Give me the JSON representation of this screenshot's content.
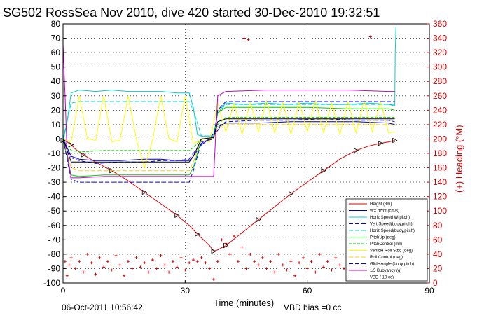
{
  "chart_data": {
    "type": "line",
    "title": "SG502 RossSea Nov 2010, dive 420 started 30-Dec-2010 19:32:51",
    "xlabel": "Time (minutes)",
    "ylabel_right": "(+) Heading (°M)",
    "xlim": [
      0,
      90
    ],
    "ylim_left": [
      -100,
      80
    ],
    "ylim_right": [
      0,
      360
    ],
    "x_ticks": [
      "0",
      "30",
      "60",
      "90"
    ],
    "y_left_ticks": [
      "-100",
      "-90",
      "-80",
      "-70",
      "-60",
      "-50",
      "-40",
      "-30",
      "-20",
      "-10",
      "0",
      "10",
      "20",
      "30",
      "40",
      "50",
      "60",
      "70",
      "80"
    ],
    "y_right_ticks": [
      "0",
      "20",
      "40",
      "60",
      "80",
      "100",
      "120",
      "140",
      "160",
      "180",
      "200",
      "220",
      "240",
      "260",
      "280",
      "300",
      "320",
      "340",
      "360"
    ],
    "grid": true,
    "legend_position": "bottom-right",
    "series": [
      {
        "name": "Height (3m)",
        "color": "#e00000",
        "x": [
          0,
          1,
          2,
          3,
          5,
          8,
          12,
          16,
          20,
          24,
          28,
          31,
          33,
          36,
          37,
          38,
          40,
          44,
          48,
          52,
          56,
          60,
          64,
          68,
          72,
          75,
          78,
          80,
          81.5
        ],
        "y": [
          -1,
          -2,
          -4,
          -7,
          -11,
          -16,
          -22,
          -29,
          -37,
          -45,
          -53,
          -60,
          -66,
          -74,
          -78,
          -77,
          -74,
          -65,
          -56,
          -47,
          -38,
          -30,
          -22,
          -14,
          -8,
          -5,
          -3,
          -2,
          -1
        ]
      },
      {
        "name": "W= dz/dt (cm/s)",
        "color": "#0000aa",
        "x": [
          0,
          2,
          4,
          8,
          14,
          20,
          24,
          28,
          31,
          32,
          33,
          34,
          36,
          37,
          38,
          39,
          40,
          48,
          56,
          64,
          72,
          80,
          81.5
        ],
        "y": [
          0,
          -12,
          -14,
          -15,
          -15,
          -14,
          -14,
          -15,
          -15,
          -12,
          -8,
          -4,
          0,
          2,
          6,
          10,
          11,
          11,
          12,
          12,
          12,
          11,
          10
        ]
      },
      {
        "name": "Horiz Speed W(pitch)",
        "color": "#00cccc",
        "x": [
          0,
          1,
          2,
          4,
          8,
          12,
          16,
          20,
          24,
          28,
          31,
          32,
          33,
          34,
          36,
          37,
          38,
          39,
          40,
          45,
          50,
          55,
          60,
          65,
          70,
          75,
          80,
          81.5,
          81.6,
          81.8
        ],
        "y": [
          -2,
          12,
          32,
          34,
          33,
          34,
          33,
          33,
          33,
          32,
          32,
          22,
          3,
          2,
          2,
          3,
          18,
          22,
          25,
          24,
          25,
          24,
          25,
          24,
          24,
          25,
          24,
          23,
          60,
          78
        ]
      },
      {
        "name": "Vert Speed(buoy,pitch)",
        "color": "#0000ff",
        "x": [
          0,
          2,
          4,
          8,
          14,
          20,
          24,
          28,
          31,
          32,
          34,
          36,
          38,
          40,
          48,
          56,
          64,
          72,
          80,
          81.5
        ],
        "y": [
          0,
          -13,
          -15,
          -17,
          -16,
          -16,
          -15,
          -15,
          -14,
          -10,
          -3,
          0,
          8,
          12,
          13,
          13,
          14,
          13,
          13,
          12
        ]
      },
      {
        "name": "Horiz Speed(buoy,pitch)",
        "color": "#00cccc",
        "x": [
          0,
          2,
          4,
          10,
          20,
          31,
          32,
          34,
          37,
          38,
          40,
          50,
          60,
          70,
          80,
          81.5
        ],
        "y": [
          0,
          25,
          26,
          26,
          26,
          26,
          20,
          2,
          2,
          18,
          24,
          24,
          24,
          24,
          24,
          24
        ]
      },
      {
        "name": "PitchUp (deg)",
        "color": "#00cc00",
        "x": [
          0,
          2,
          4,
          10,
          20,
          31,
          32,
          34,
          37,
          38,
          40,
          50,
          60,
          70,
          80,
          81.5
        ],
        "y": [
          0,
          -25,
          -26,
          -25,
          -25,
          -25,
          -20,
          0,
          1,
          18,
          22,
          22,
          22,
          21,
          21,
          20
        ]
      },
      {
        "name": "PitchControl (mm)",
        "color": "#00cc00",
        "x": [
          0,
          2,
          4,
          10,
          20,
          31,
          32,
          34,
          37,
          38,
          40,
          50,
          60,
          70,
          80,
          81.5
        ],
        "y": [
          0,
          -8,
          -9,
          -8,
          -8,
          -8,
          -6,
          0,
          0,
          10,
          15,
          15,
          15,
          15,
          15,
          15
        ]
      },
      {
        "name": "Vehicle Roll Stbd (deg)",
        "color": "#ffff00",
        "x": [
          0,
          2,
          4,
          6,
          8,
          10,
          12,
          14,
          16,
          18,
          20,
          22,
          24,
          26,
          28,
          30,
          32,
          34,
          36,
          38,
          40,
          42,
          44,
          46,
          48,
          50,
          52,
          54,
          56,
          58,
          60,
          62,
          64,
          66,
          68,
          70,
          72,
          74,
          76,
          78,
          80,
          81.5
        ],
        "y": [
          0,
          -2,
          30,
          0,
          -1,
          30,
          -2,
          -1,
          30,
          0,
          -20,
          -1,
          30,
          0,
          -2,
          30,
          -3,
          -1,
          -2,
          25,
          5,
          25,
          3,
          26,
          5,
          27,
          4,
          26,
          3,
          26,
          5,
          27,
          4,
          25,
          3,
          26,
          4,
          27,
          5,
          26,
          4,
          5
        ]
      },
      {
        "name": "Roll Control (deg)",
        "color": "#ffcc00",
        "x": [
          0,
          2,
          4,
          10,
          20,
          31,
          32,
          34,
          37,
          38,
          40,
          50,
          60,
          70,
          80,
          81.5
        ],
        "y": [
          0,
          -20,
          -22,
          -22,
          -22,
          -22,
          -16,
          0,
          0,
          8,
          10,
          10,
          10,
          10,
          10,
          10
        ]
      },
      {
        "name": "Glide Angle (buoy,pitch)",
        "color": "#0000ff",
        "x": [
          0,
          2,
          4,
          10,
          20,
          31,
          32,
          34,
          37,
          38,
          40,
          50,
          60,
          70,
          80,
          81.5
        ],
        "y": [
          0,
          -28,
          -30,
          -30,
          -30,
          -30,
          -22,
          -2,
          0,
          20,
          26,
          26,
          26,
          26,
          26,
          26
        ]
      },
      {
        "name": "1/5 Buoyancy (g)",
        "color": "#cc00cc",
        "x": [
          0,
          0.5,
          1,
          2,
          4,
          10,
          20,
          31,
          32,
          33,
          36,
          37,
          38,
          40,
          50,
          60,
          70,
          80,
          81.5
        ],
        "y": [
          66,
          30,
          -10,
          -27,
          -27,
          -26,
          -26,
          -26,
          -26,
          -26,
          -26,
          -26,
          30,
          33,
          34,
          34,
          34,
          33,
          33
        ]
      },
      {
        "name": "VBD ( 10 cc)",
        "color": "#000000",
        "x": [
          0,
          2,
          4,
          10,
          20,
          31,
          32,
          34,
          37,
          38,
          40,
          50,
          60,
          70,
          80,
          81.5
        ],
        "y": [
          0,
          -16,
          -16,
          -16,
          -16,
          -16,
          -12,
          0,
          1,
          12,
          14,
          14,
          14,
          14,
          14,
          14
        ]
      },
      {
        "name": "Heading",
        "color": "#cc0000",
        "axis": "right",
        "x": [
          0.5,
          1,
          1.5,
          2,
          3,
          4,
          5,
          6,
          7,
          8,
          9,
          10,
          11,
          12,
          13,
          14,
          15,
          16,
          17,
          18,
          19,
          20,
          21,
          22,
          23,
          24,
          25,
          26,
          27,
          28,
          29,
          30,
          31,
          32,
          33,
          34,
          35,
          36,
          37,
          38,
          39,
          40,
          41,
          42,
          43,
          44,
          45,
          46,
          47,
          48,
          49,
          50,
          51,
          52,
          53,
          54,
          55,
          56,
          57,
          58,
          59,
          60,
          61,
          62,
          63,
          64,
          65,
          66,
          67,
          68,
          69,
          70,
          71,
          72,
          73,
          74,
          75,
          76,
          77,
          78,
          79,
          80,
          81
        ],
        "y": [
          30,
          10,
          25,
          35,
          20,
          30,
          15,
          40,
          28,
          12,
          35,
          22,
          30,
          18,
          38,
          25,
          10,
          30,
          20,
          35,
          22,
          28,
          15,
          32,
          20,
          38,
          25,
          15,
          30,
          22,
          35,
          18,
          28,
          32,
          30,
          35,
          28,
          20,
          5,
          30,
          60,
          55,
          40,
          65,
          30,
          50,
          20,
          40,
          30,
          25,
          35,
          20,
          30,
          15,
          40,
          25,
          18,
          30,
          10,
          28,
          35,
          20,
          30,
          15,
          40,
          22,
          30,
          18,
          35,
          25,
          20,
          32,
          15,
          30,
          22,
          35,
          28,
          18,
          30,
          25,
          20,
          32,
          28
        ]
      }
    ],
    "heading_outliers": {
      "x": [
        44.5,
        45.5,
        75.5
      ],
      "y": [
        340,
        338,
        342
      ]
    },
    "legend_entries": [
      "Height (3m)",
      "W= dz/dt (cm/s)",
      "Horiz Speed W(pitch)",
      "Vert Speed(buoy,pitch)",
      "Horiz Speed(buoy,pitch)",
      "PitchUp (deg)",
      "PitchControl (mm)",
      "Vehicle Roll Stbd (deg)",
      "Roll Control (deg)",
      "Glide Angle (buoy,pitch)",
      "1/5 Buoyancy (g)",
      "VBD ( 10 cc)"
    ],
    "footer_left": "06-Oct-2011 10:56:42",
    "footer_right": "VBD bias =0 cc"
  },
  "colors": {
    "left_axis": "#000000",
    "right_axis": "#cc0000",
    "grid": "#000000"
  }
}
